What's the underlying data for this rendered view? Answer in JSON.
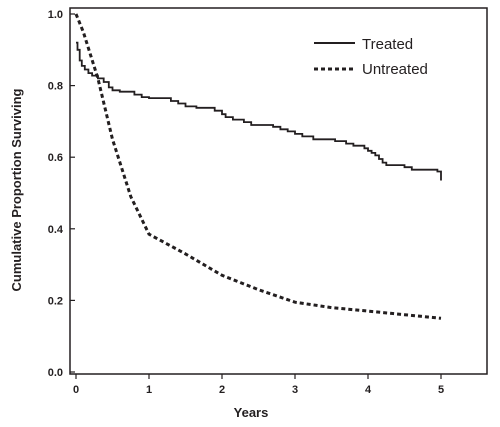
{
  "chart_data": {
    "type": "line",
    "xlabel": "Years",
    "ylabel": "Cumulative Proportion Surviving",
    "xlim": [
      0,
      5
    ],
    "ylim": [
      0,
      1
    ],
    "x_ticks": [
      "0",
      "1",
      "2",
      "3",
      "4",
      "5"
    ],
    "y_ticks": [
      "0.0",
      "0.2",
      "0.4",
      "0.6",
      "0.8",
      "1.0"
    ],
    "grid": false,
    "legend_position": "top-right",
    "colors": {
      "axis": "#231f20",
      "series": "#231f20"
    },
    "series": [
      {
        "name": "Treated",
        "style": "solid",
        "step": true,
        "points": [
          [
            0,
            0.92
          ],
          [
            0.02,
            0.9
          ],
          [
            0.05,
            0.87
          ],
          [
            0.08,
            0.855
          ],
          [
            0.12,
            0.845
          ],
          [
            0.17,
            0.835
          ],
          [
            0.22,
            0.828
          ],
          [
            0.3,
            0.82
          ],
          [
            0.38,
            0.81
          ],
          [
            0.45,
            0.795
          ],
          [
            0.5,
            0.787
          ],
          [
            0.6,
            0.783
          ],
          [
            0.8,
            0.775
          ],
          [
            0.9,
            0.768
          ],
          [
            1.0,
            0.765
          ],
          [
            1.2,
            0.765
          ],
          [
            1.3,
            0.757
          ],
          [
            1.4,
            0.75
          ],
          [
            1.5,
            0.742
          ],
          [
            1.65,
            0.738
          ],
          [
            1.9,
            0.73
          ],
          [
            2.0,
            0.72
          ],
          [
            2.05,
            0.712
          ],
          [
            2.15,
            0.705
          ],
          [
            2.3,
            0.698
          ],
          [
            2.4,
            0.69
          ],
          [
            2.7,
            0.685
          ],
          [
            2.8,
            0.678
          ],
          [
            2.9,
            0.672
          ],
          [
            3.0,
            0.665
          ],
          [
            3.1,
            0.658
          ],
          [
            3.25,
            0.65
          ],
          [
            3.55,
            0.645
          ],
          [
            3.7,
            0.638
          ],
          [
            3.8,
            0.632
          ],
          [
            3.95,
            0.625
          ],
          [
            4.0,
            0.618
          ],
          [
            4.05,
            0.612
          ],
          [
            4.1,
            0.605
          ],
          [
            4.15,
            0.595
          ],
          [
            4.2,
            0.585
          ],
          [
            4.25,
            0.578
          ],
          [
            4.5,
            0.572
          ],
          [
            4.6,
            0.565
          ],
          [
            4.95,
            0.56
          ],
          [
            5.0,
            0.535
          ]
        ]
      },
      {
        "name": "Untreated",
        "style": "dashed",
        "step": false,
        "points": [
          [
            0,
            1.0
          ],
          [
            0.1,
            0.95
          ],
          [
            0.3,
            0.82
          ],
          [
            0.5,
            0.65
          ],
          [
            0.75,
            0.49
          ],
          [
            1.0,
            0.385
          ],
          [
            1.5,
            0.33
          ],
          [
            2.0,
            0.27
          ],
          [
            2.5,
            0.23
          ],
          [
            3.0,
            0.195
          ],
          [
            3.5,
            0.18
          ],
          [
            4.0,
            0.17
          ],
          [
            4.5,
            0.16
          ],
          [
            5.0,
            0.15
          ]
        ]
      }
    ]
  }
}
